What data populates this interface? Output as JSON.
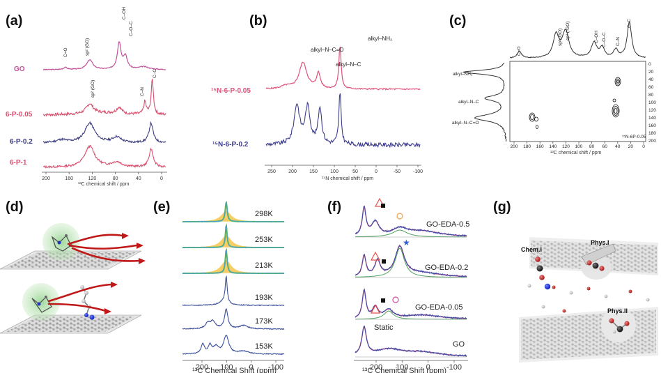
{
  "panels": {
    "a": {
      "label": "(a)",
      "spectra": [
        {
          "name": "GO",
          "color": "#c0509a"
        },
        {
          "name": "6-P-0.05",
          "color": "#d8506e"
        },
        {
          "name": "6-P-0.2",
          "color": "#3c3c82"
        },
        {
          "name": "6-P-1",
          "color": "#d8506e"
        }
      ],
      "peaks_go": [
        "C=O",
        "sp² (GO)",
        "C–OH",
        "C–O–C"
      ],
      "peaks_p": [
        "sp² (GO)",
        "C–N",
        "C–C"
      ],
      "ticks": [
        "200",
        "160",
        "120",
        "80",
        "40",
        "0"
      ],
      "xlabel": "¹³C chemical shift / ppm"
    },
    "b": {
      "label": "(b)",
      "spectra": [
        {
          "name": "¹⁵N-6-P-0.05",
          "color": "#e0507a"
        },
        {
          "name": "¹⁵N-6-P-0.2",
          "color": "#3c3c8c"
        }
      ],
      "peaks": [
        "alkyl–N–C=O",
        "alkyl–N–C",
        "alkyl–NH₂"
      ],
      "ticks": [
        "250",
        "200",
        "150",
        "100",
        "50",
        "0",
        "-50",
        "-100"
      ],
      "xlabel": "¹⁵N chemical shift / ppm"
    },
    "c": {
      "label": "(c)",
      "top_peaks": [
        "C=O",
        "sp² (GO)",
        "sp² (rGO)",
        "C–OH",
        "C–O–C",
        "C–N",
        "C–C"
      ],
      "side_peaks": [
        "alkyl–NH₂",
        "alkyl–N–C",
        "alkyl–N–C=O"
      ],
      "x_ticks": [
        "200",
        "180",
        "160",
        "140",
        "120",
        "100",
        "80",
        "60",
        "40",
        "20",
        "0"
      ],
      "y_ticks": [
        "0",
        "20",
        "40",
        "60",
        "80",
        "100",
        "120",
        "140",
        "160",
        "180",
        "200"
      ],
      "xlabel": "¹³C chemical shift / ppm",
      "sample": "¹⁵N-6P-0.05"
    },
    "d": {
      "label": "(d)"
    },
    "e": {
      "label": "(e)",
      "temps": [
        "298K",
        "253K",
        "213K",
        "193K",
        "173K",
        "153K"
      ],
      "ticks": [
        "200",
        "100",
        "0",
        "-100"
      ],
      "xlabel": "¹³C Chemical Shift (ppm)"
    },
    "f": {
      "label": "(f)",
      "samples": [
        "GO-EDA-0.5",
        "GO-EDA-0.2",
        "GO-EDA-0.05",
        "GO"
      ],
      "static_label": "Static",
      "ticks": [
        "200",
        "100",
        "0",
        "-100"
      ],
      "xlabel": "¹³C Chemical Shift (ppm)"
    },
    "g": {
      "label": "(g)",
      "sites": [
        "Chem.I",
        "Phys.I",
        "Phys.II"
      ]
    }
  }
}
